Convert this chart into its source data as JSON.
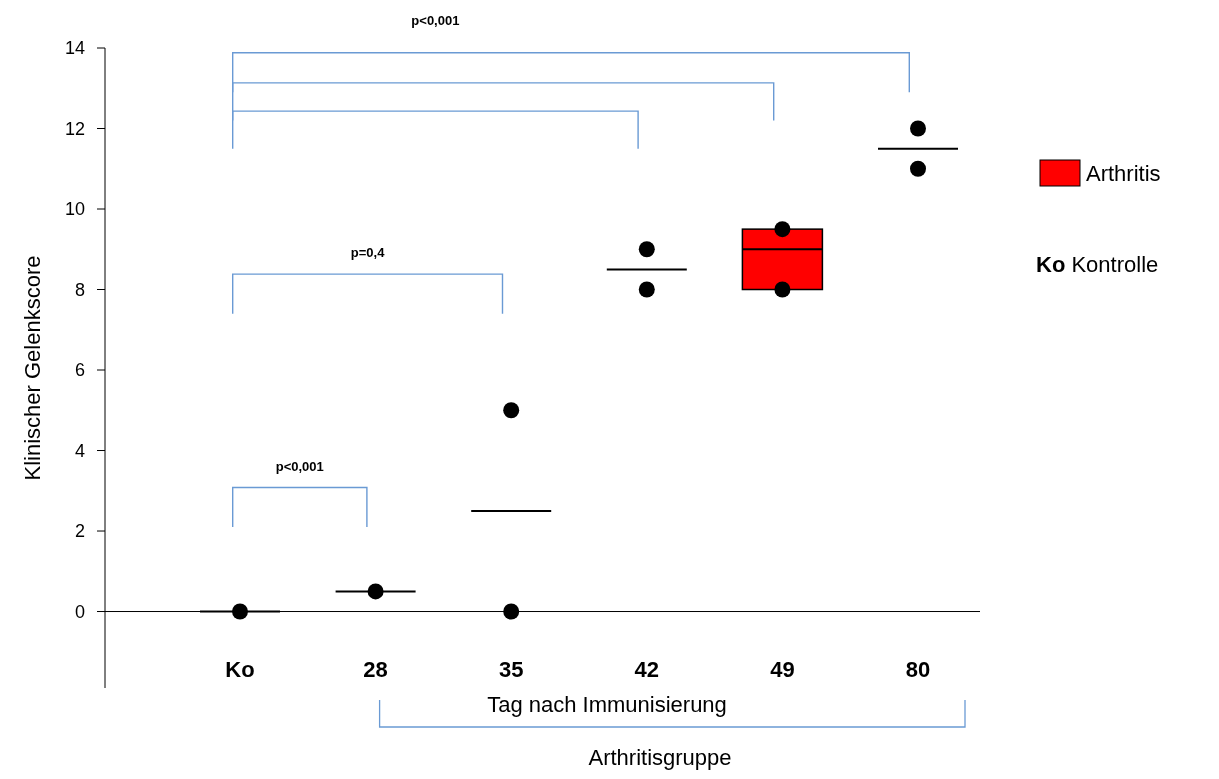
{
  "chart_data": {
    "type": "box",
    "xlabel": "Tag nach Immunisierung",
    "ylabel": "Klinischer Gelenkscore",
    "categories": [
      "Ko",
      "28",
      "35",
      "42",
      "49",
      "80"
    ],
    "ylim": [
      -1.9,
      14
    ],
    "yticks": [
      0,
      2,
      4,
      6,
      8,
      10,
      12,
      14
    ],
    "grid": false,
    "legend": "right",
    "marker": "circle",
    "series": [
      {
        "name": "Arthritis",
        "color": "#ff0000",
        "boxes": [
          null,
          null,
          null,
          null,
          {
            "low": 8,
            "q1": 8,
            "median": 9,
            "q3": 9.5,
            "high": 9.5
          },
          null
        ]
      },
      {
        "color": "#000000",
        "boxes": [
          {
            "low": 0,
            "q1": 0,
            "median": 0,
            "q3": 0,
            "high": 0
          },
          {
            "low": 0.5,
            "q1": 0.5,
            "median": 0.5,
            "q3": 0.5,
            "high": 0.5
          },
          {
            "low": 2.5,
            "q1": 2.5,
            "median": 2.5,
            "q3": 2.5,
            "high": 2.5
          },
          {
            "low": 8.5,
            "q1": 8.5,
            "median": 8.5,
            "q3": 8.5,
            "high": 8.5
          },
          null,
          {
            "low": 11.5,
            "q1": 11.5,
            "median": 11.5,
            "q3": 11.5,
            "high": 11.5
          }
        ]
      },
      {
        "type": "scatter",
        "color": "#000000",
        "x": [
          "Ko",
          "28",
          "35",
          "35",
          "42",
          "42",
          "49",
          "49",
          "80",
          "80"
        ],
        "values": [
          0,
          0.5,
          5,
          0,
          9,
          8,
          9.5,
          8,
          12,
          11
        ]
      }
    ],
    "annotations": [
      "p<0,001",
      "p=0,4",
      "p<0,001",
      "Arthritisgruppe",
      "Ko Kontrolle"
    ]
  }
}
